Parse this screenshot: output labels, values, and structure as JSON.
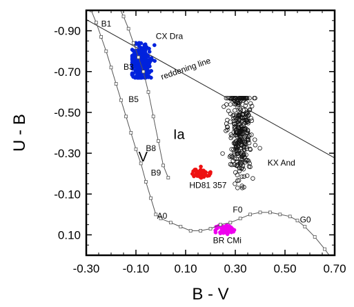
{
  "chart_data": {
    "type": "scatter",
    "xlabel": "B - V",
    "ylabel": "U - B",
    "xlim": [
      -0.3,
      0.7
    ],
    "ylim": [
      0.2,
      -1.0
    ],
    "y_inverted": true,
    "x_ticks": [
      -0.3,
      -0.1,
      0.1,
      0.3,
      0.5,
      0.7
    ],
    "x_tick_labels": [
      "-0.30",
      "-0.10",
      "0.10",
      "0.30",
      "0.50",
      "0.70"
    ],
    "y_ticks": [
      -0.9,
      -0.7,
      -0.5,
      -0.3,
      -0.1,
      0.1
    ],
    "y_tick_labels": [
      "-0.90",
      "-0.70",
      "-0.50",
      "-0.30",
      "-0.10",
      "0.10"
    ],
    "grid": false,
    "sequences": [
      {
        "name": "V",
        "marker": "open-square",
        "color": "#555555",
        "points": [
          [
            -0.32,
            -1.09
          ],
          [
            -0.3,
            -1.06
          ],
          [
            -0.28,
            -1.0
          ],
          [
            -0.26,
            -0.94
          ],
          [
            -0.24,
            -0.87
          ],
          [
            -0.22,
            -0.8
          ],
          [
            -0.2,
            -0.72
          ],
          [
            -0.18,
            -0.64
          ],
          [
            -0.16,
            -0.56
          ],
          [
            -0.14,
            -0.48
          ],
          [
            -0.12,
            -0.4
          ],
          [
            -0.1,
            -0.32
          ],
          [
            -0.08,
            -0.25
          ],
          [
            -0.06,
            -0.16
          ],
          [
            -0.04,
            -0.08
          ],
          [
            -0.02,
            0.0
          ],
          [
            0.0,
            0.02
          ],
          [
            0.04,
            0.04
          ],
          [
            0.08,
            0.06
          ],
          [
            0.12,
            0.08
          ],
          [
            0.16,
            0.08
          ],
          [
            0.2,
            0.07
          ],
          [
            0.24,
            0.05
          ],
          [
            0.28,
            0.04
          ],
          [
            0.32,
            0.02
          ],
          [
            0.36,
            0.0
          ],
          [
            0.4,
            -0.01
          ],
          [
            0.44,
            -0.01
          ],
          [
            0.48,
            0.0
          ],
          [
            0.52,
            0.01
          ],
          [
            0.55,
            0.03
          ],
          [
            0.58,
            0.06
          ],
          [
            0.62,
            0.11
          ],
          [
            0.66,
            0.17
          ],
          [
            0.69,
            0.22
          ]
        ]
      },
      {
        "name": "Ia",
        "marker": "open-square",
        "color": "#555555",
        "points": [
          [
            -0.17,
            -1.02
          ],
          [
            -0.15,
            -0.97
          ],
          [
            -0.13,
            -0.91
          ],
          [
            -0.11,
            -0.84
          ],
          [
            -0.09,
            -0.77
          ],
          [
            -0.07,
            -0.7
          ],
          [
            -0.05,
            -0.6
          ],
          [
            -0.03,
            -0.48
          ],
          [
            -0.01,
            -0.36
          ],
          [
            0.01,
            -0.24
          ],
          [
            0.03,
            -0.18
          ]
        ]
      }
    ],
    "reddening_line": [
      [
        -0.3,
        -0.955
      ],
      [
        0.7,
        -0.277
      ]
    ],
    "clusters": [
      {
        "name": "CX Dra",
        "color": "#0022dd",
        "marker": "filled-circle",
        "center": [
          -0.08,
          -0.74
        ],
        "spread": [
          0.02,
          0.045
        ],
        "count": 300,
        "range_x": [
          -0.115,
          0.005
        ],
        "range_y": [
          -0.84,
          -0.67
        ]
      },
      {
        "name": "KX And",
        "color": "#111111",
        "marker": "open-circle",
        "center": [
          0.32,
          -0.42
        ],
        "spread": [
          0.025,
          0.12
        ],
        "count": 320,
        "range_x": [
          0.24,
          0.42
        ],
        "range_y": [
          -0.57,
          -0.13
        ]
      },
      {
        "name": "HD81 357",
        "color": "#ee1111",
        "marker": "filled-circle",
        "center": [
          0.165,
          -0.2
        ],
        "spread": [
          0.02,
          0.012
        ],
        "count": 60,
        "range_x": [
          0.11,
          0.2
        ],
        "range_y": [
          -0.25,
          -0.18
        ]
      },
      {
        "name": "BR CMi",
        "color": "#ee00ee",
        "marker": "filled-circle",
        "center": [
          0.26,
          0.075
        ],
        "spread": [
          0.015,
          0.012
        ],
        "count": 60,
        "range_x": [
          0.22,
          0.3
        ],
        "range_y": [
          0.04,
          0.1
        ]
      }
    ],
    "annotations": [
      {
        "text": "B1",
        "x": -0.24,
        "y": -0.92,
        "size": 12
      },
      {
        "text": "B3",
        "x": -0.15,
        "y": -0.71,
        "size": 12
      },
      {
        "text": "B5",
        "x": -0.13,
        "y": -0.55,
        "size": 12
      },
      {
        "text": "B8",
        "x": -0.06,
        "y": -0.31,
        "size": 12
      },
      {
        "text": "B9",
        "x": -0.04,
        "y": -0.19,
        "size": 12
      },
      {
        "text": "A0",
        "x": -0.015,
        "y": 0.02,
        "size": 12
      },
      {
        "text": "F0",
        "x": 0.29,
        "y": -0.01,
        "size": 12
      },
      {
        "text": "G0",
        "x": 0.56,
        "y": 0.04,
        "size": 12
      },
      {
        "text": "V",
        "x": -0.09,
        "y": -0.26,
        "size": 20
      },
      {
        "text": "Ia",
        "x": 0.05,
        "y": -0.37,
        "size": 20
      },
      {
        "text": "CX Dra",
        "x": -0.02,
        "y": -0.86,
        "size": 12
      },
      {
        "text": "reddening line",
        "x": 0.005,
        "y": -0.66,
        "size": 12,
        "rotate": -19
      },
      {
        "text": "KX And",
        "x": 0.43,
        "y": -0.24,
        "size": 12
      },
      {
        "text": "HD81 357",
        "x": 0.115,
        "y": -0.13,
        "size": 12
      },
      {
        "text": "BR CMi",
        "x": 0.21,
        "y": 0.14,
        "size": 12
      }
    ]
  }
}
